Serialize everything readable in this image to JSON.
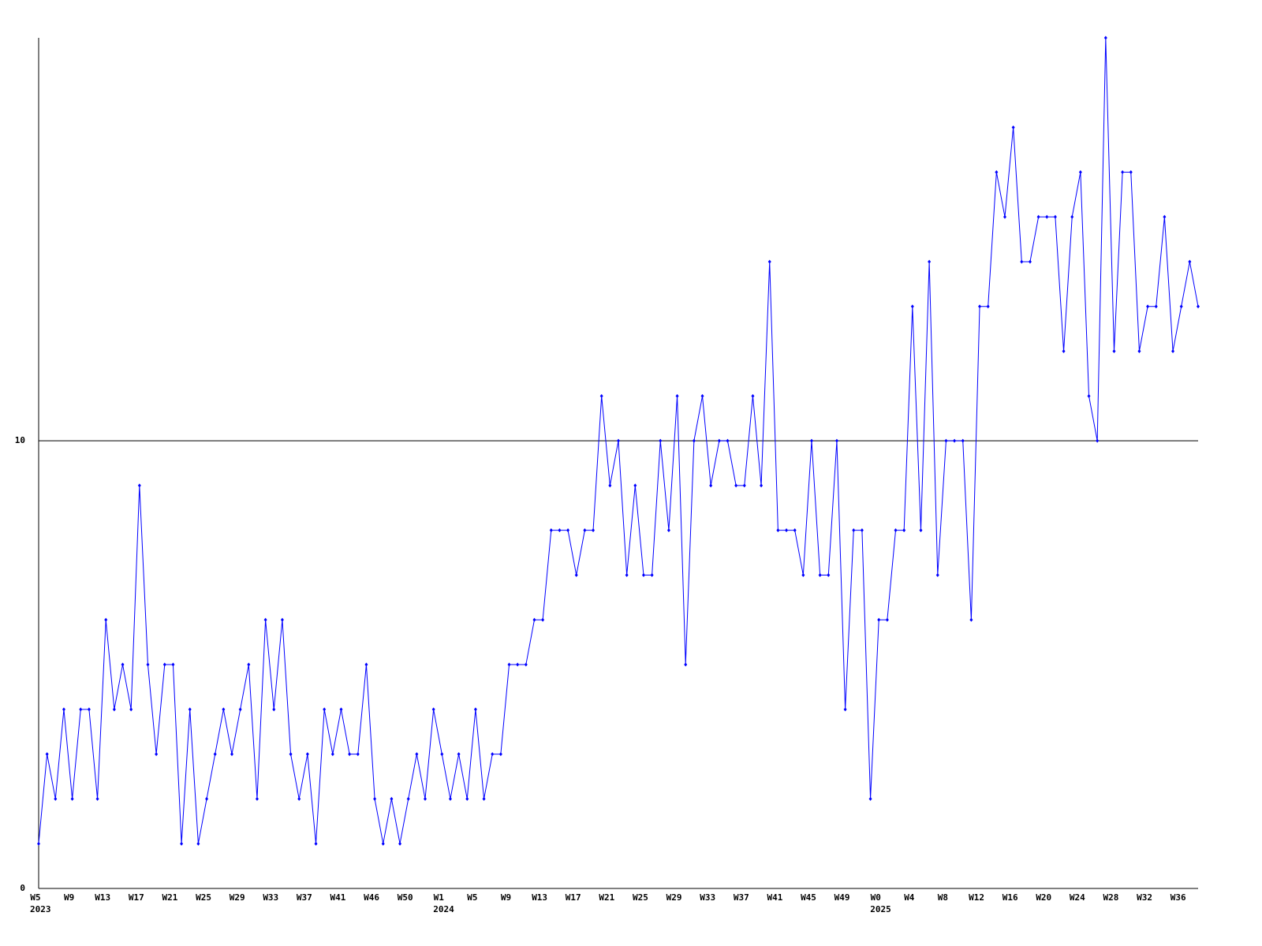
{
  "chart_data": {
    "type": "line",
    "categories": [
      "W5",
      null,
      null,
      null,
      "W9",
      null,
      null,
      null,
      "W13",
      null,
      null,
      null,
      "W17",
      null,
      null,
      null,
      "W21",
      null,
      null,
      null,
      "W25",
      null,
      null,
      null,
      "W29",
      null,
      null,
      null,
      "W33",
      null,
      null,
      null,
      "W37",
      null,
      null,
      null,
      "W41",
      null,
      null,
      null,
      "W46",
      null,
      null,
      null,
      "W50",
      null,
      null,
      null,
      "W1",
      null,
      null,
      null,
      "W5",
      null,
      null,
      null,
      "W9",
      null,
      null,
      null,
      "W13",
      null,
      null,
      null,
      "W17",
      null,
      null,
      null,
      "W21",
      null,
      null,
      null,
      "W25",
      null,
      null,
      null,
      "W29",
      null,
      null,
      null,
      "W33",
      null,
      null,
      null,
      "W37",
      null,
      null,
      null,
      "W41",
      null,
      null,
      null,
      "W45",
      null,
      null,
      null,
      "W49",
      null,
      null,
      null,
      "W0",
      null,
      null,
      null,
      "W4",
      null,
      null,
      null,
      "W8",
      null,
      null,
      null,
      "W12",
      null,
      null,
      null,
      "W16",
      null,
      null,
      null,
      "W20",
      null,
      null,
      null,
      "W24",
      null,
      null,
      null,
      "W28",
      null,
      null,
      null,
      "W32",
      null,
      null,
      null,
      "W36",
      null,
      null
    ],
    "x_sublabels": [
      "2023",
      null,
      null,
      null,
      null,
      null,
      null,
      null,
      null,
      null,
      null,
      null,
      null,
      null,
      null,
      null,
      null,
      null,
      null,
      null,
      null,
      null,
      null,
      null,
      null,
      null,
      null,
      null,
      null,
      null,
      null,
      null,
      null,
      null,
      null,
      null,
      null,
      null,
      null,
      null,
      null,
      null,
      null,
      null,
      null,
      null,
      null,
      null,
      "2024",
      null,
      null,
      null,
      null,
      null,
      null,
      null,
      null,
      null,
      null,
      null,
      null,
      null,
      null,
      null,
      null,
      null,
      null,
      null,
      null,
      null,
      null,
      null,
      null,
      null,
      null,
      null,
      null,
      null,
      null,
      null,
      null,
      null,
      null,
      null,
      null,
      null,
      null,
      null,
      null,
      null,
      null,
      null,
      null,
      null,
      null,
      null,
      null,
      null,
      null,
      null,
      "2025",
      null,
      null,
      null,
      null,
      null,
      null,
      null,
      null,
      null,
      null,
      null,
      null,
      null,
      null,
      null,
      null,
      null,
      null,
      null,
      null,
      null,
      null,
      null,
      null,
      null,
      null,
      null,
      null,
      null,
      null,
      null,
      null,
      null,
      null,
      null,
      null,
      null,
      null
    ],
    "series": [
      {
        "color": "#0000ff",
        "values": [
          1,
          3,
          2,
          4,
          2,
          4,
          4,
          2,
          6,
          4,
          5,
          4,
          9,
          5,
          3,
          5,
          5,
          1,
          4,
          1,
          2,
          3,
          4,
          3,
          4,
          5,
          2,
          6,
          4,
          6,
          3,
          2,
          3,
          1,
          4,
          3,
          4,
          3,
          3,
          5,
          2,
          1,
          2,
          1,
          2,
          3,
          2,
          4,
          3,
          2,
          3,
          2,
          4,
          2,
          3,
          3,
          5,
          5,
          5,
          6,
          6,
          8,
          8,
          8,
          7,
          8,
          8,
          11,
          9,
          10,
          7,
          9,
          7,
          7,
          10,
          8,
          11,
          5,
          10,
          11,
          9,
          10,
          10,
          9,
          9,
          11,
          9,
          14,
          8,
          8,
          8,
          7,
          10,
          7,
          7,
          10,
          4,
          8,
          8,
          2,
          6,
          6,
          8,
          8,
          13,
          8,
          14,
          7,
          10,
          10,
          10,
          6,
          13,
          13,
          16,
          15,
          17,
          14,
          14,
          15,
          15,
          15,
          12,
          15,
          16,
          11,
          10,
          19,
          12,
          16,
          16,
          12,
          13,
          13,
          15,
          12,
          13,
          14,
          13
        ]
      }
    ],
    "ylim": [
      0,
      19
    ],
    "yticks": [
      0,
      10
    ],
    "grid": true
  }
}
